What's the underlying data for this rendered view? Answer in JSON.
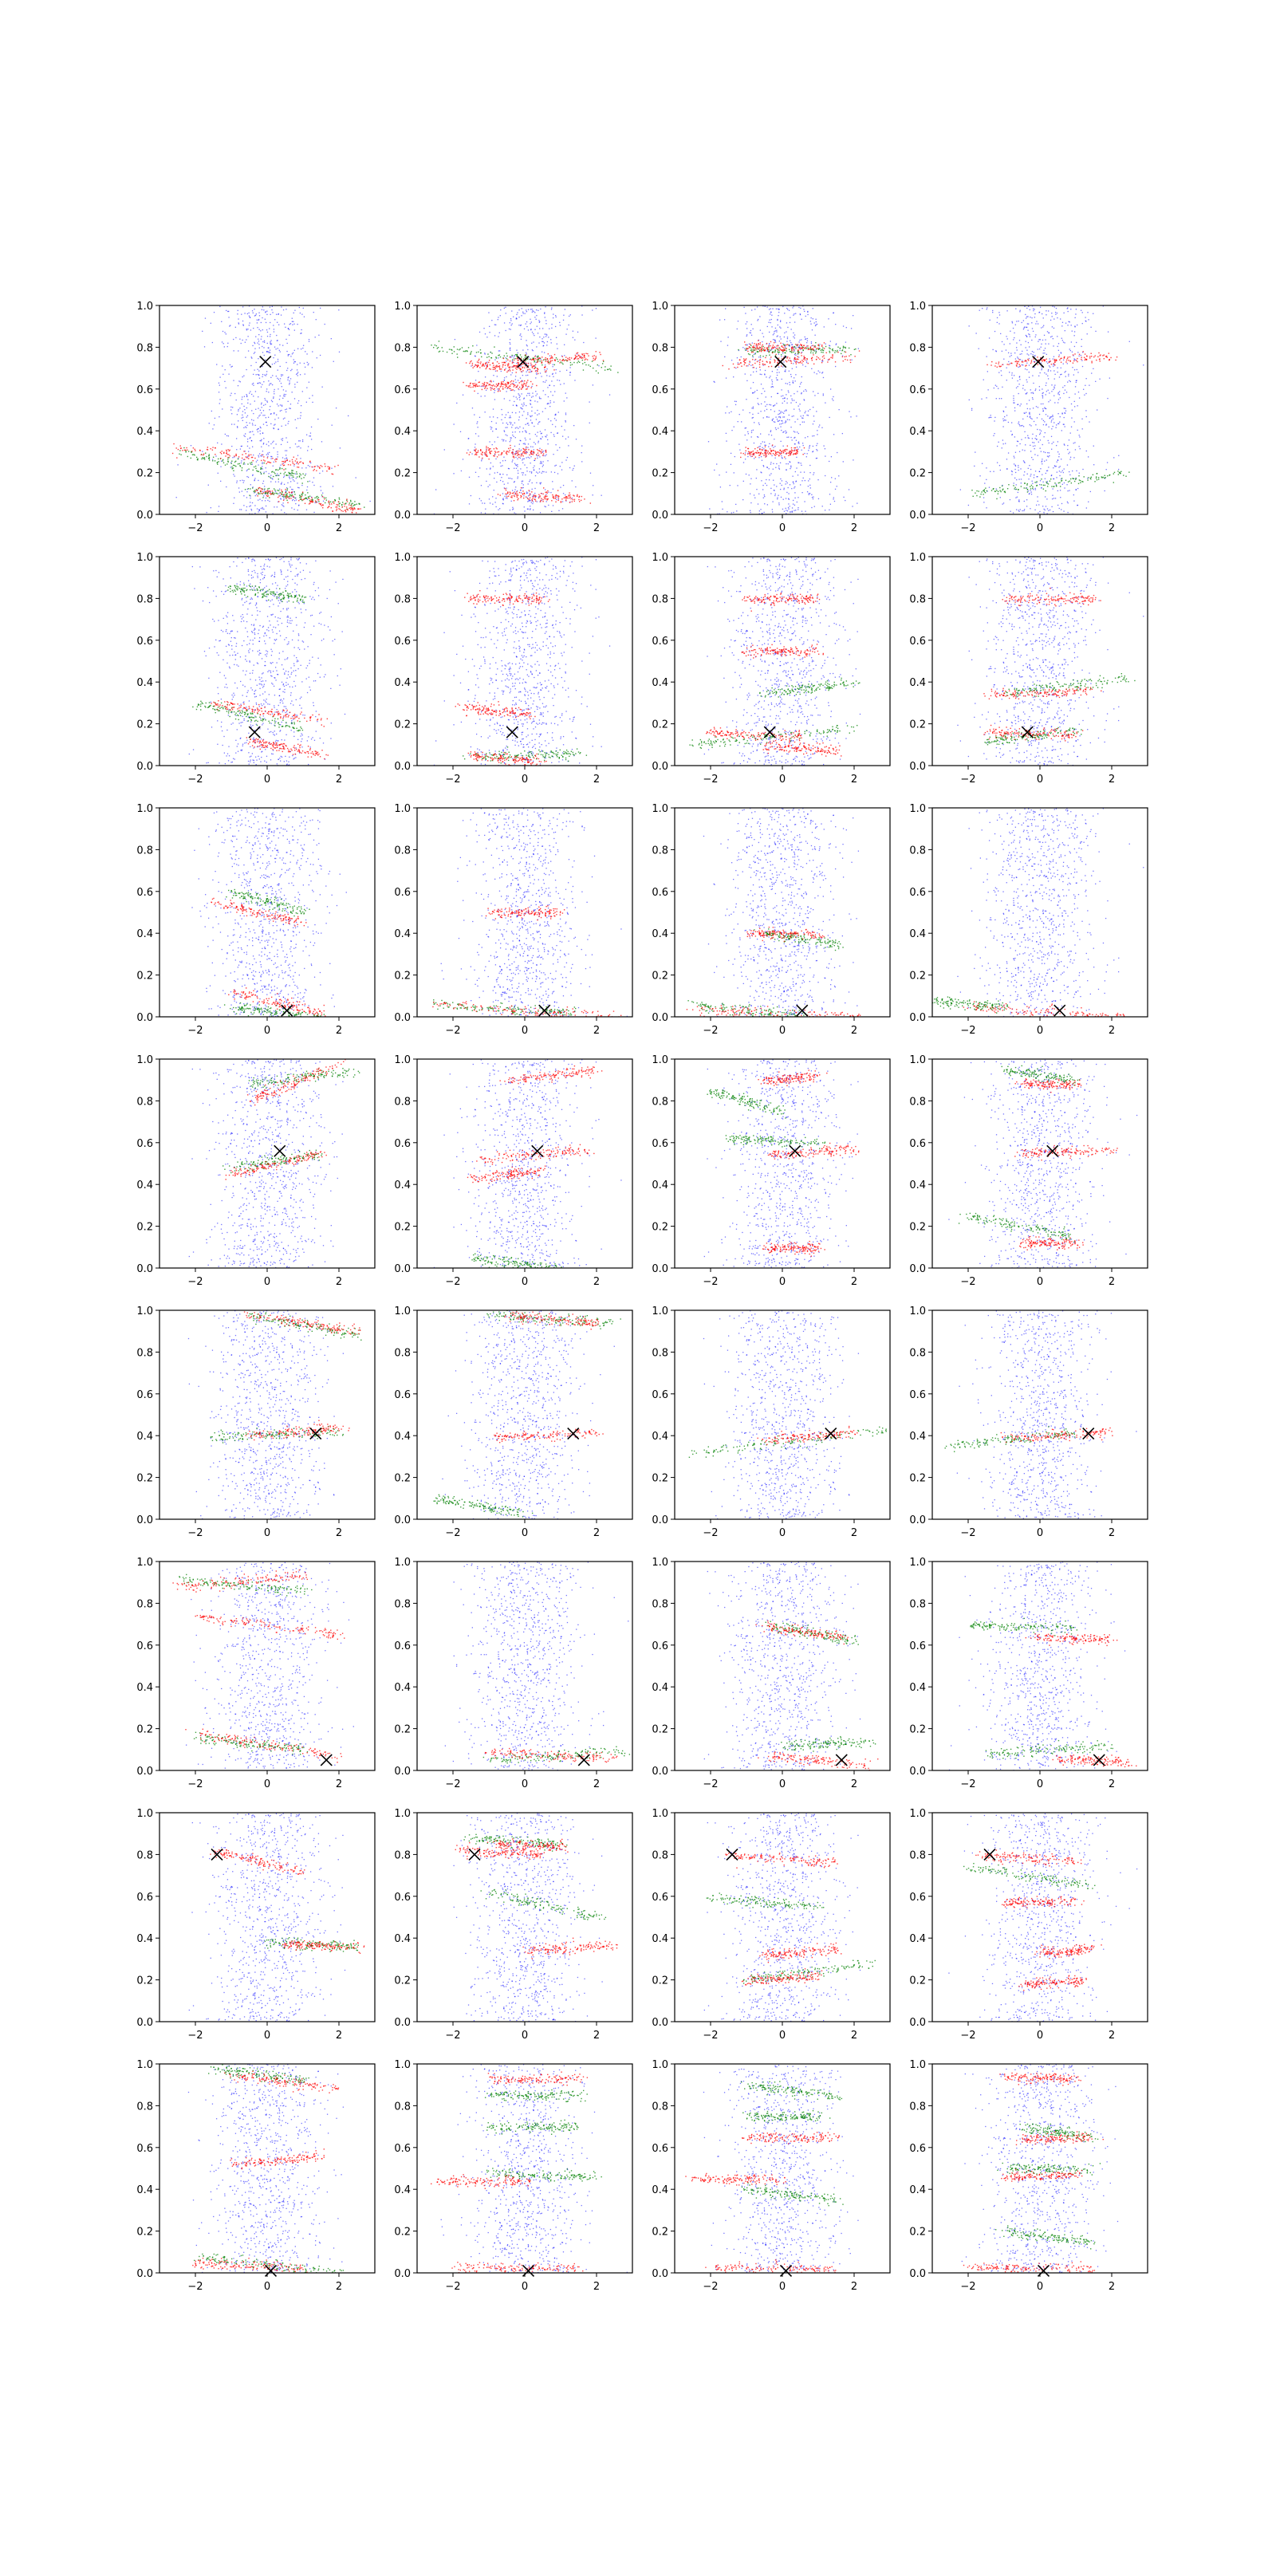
{
  "figure": {
    "rows": 8,
    "cols": 4,
    "colors": {
      "blue": "#0000ff",
      "red": "#ff0000",
      "green": "#008000",
      "marker": "#000000",
      "background": "#ffffff"
    }
  },
  "chart_data": {
    "type": "scatter",
    "xlim": [
      -3.0,
      3.0
    ],
    "ylim": [
      0.0,
      1.0
    ],
    "xticks": [
      -2,
      0,
      2
    ],
    "xtick_labels": [
      "−2",
      "0",
      "2"
    ],
    "yticks": [
      0.0,
      0.2,
      0.4,
      0.6,
      0.8,
      1.0
    ],
    "ytick_labels": [
      "0.0",
      "0.2",
      "0.4",
      "0.6",
      "0.8",
      "1.0"
    ],
    "grid": false,
    "legend": "none",
    "series_colors": {
      "blue": "#0000ff",
      "red": "#ff0000",
      "green": "#008000"
    },
    "marker_symbol": "x",
    "row_markers": [
      [
        -0.05,
        0.73
      ],
      [
        -0.35,
        0.16
      ],
      [
        0.55,
        0.03
      ],
      [
        0.35,
        0.56
      ],
      [
        1.35,
        0.41
      ],
      [
        1.65,
        0.05
      ],
      [
        -1.4,
        0.8
      ],
      [
        0.1,
        0.01
      ]
    ],
    "red_bands": [
      [
        [
          -2.5,
          2.0,
          0.32,
          0.22
        ],
        [
          -0.3,
          2.5,
          0.12,
          0.02
        ]
      ],
      [
        [
          -0.5,
          2.0,
          0.73,
          0.76
        ],
        [
          -1.6,
          0.5,
          0.72,
          0.7
        ],
        [
          -1.5,
          0.2,
          0.62,
          0.62
        ],
        [
          -1.5,
          0.5,
          0.3,
          0.3
        ],
        [
          -0.6,
          1.6,
          0.1,
          0.08
        ]
      ],
      [
        [
          -1.5,
          2.0,
          0.72,
          0.76
        ],
        [
          -1.0,
          1.0,
          0.8,
          0.8
        ],
        [
          -1.0,
          0.5,
          0.3,
          0.3
        ]
      ],
      [
        [
          -1.3,
          2.0,
          0.72,
          0.76
        ]
      ],
      [
        [
          -1.5,
          1.5,
          0.3,
          0.22
        ],
        [
          -0.5,
          1.5,
          0.12,
          0.05
        ]
      ],
      [
        [
          -1.5,
          0.5,
          0.8,
          0.8
        ],
        [
          -1.8,
          0.2,
          0.28,
          0.25
        ],
        [
          -1.5,
          0.5,
          0.05,
          0.02
        ]
      ],
      [
        [
          -1.0,
          1.0,
          0.8,
          0.8
        ],
        [
          -2.0,
          0.5,
          0.16,
          0.14
        ],
        [
          -0.5,
          1.5,
          0.1,
          0.07
        ],
        [
          -1.0,
          1.0,
          0.55,
          0.55
        ]
      ],
      [
        [
          -1.5,
          1.5,
          0.34,
          0.36
        ],
        [
          -1.5,
          1.0,
          0.16,
          0.15
        ],
        [
          -1.0,
          1.5,
          0.8,
          0.8
        ]
      ],
      [
        [
          -1.5,
          1.0,
          0.55,
          0.45
        ],
        [
          -1.0,
          1.5,
          0.12,
          0.02
        ]
      ],
      [
        [
          -2.5,
          2.5,
          0.06,
          0.0
        ],
        [
          -1.0,
          1.0,
          0.5,
          0.5
        ]
      ],
      [
        [
          -2.5,
          2.5,
          0.04,
          0.0
        ],
        [
          -1.0,
          1.0,
          0.4,
          0.4
        ]
      ],
      [
        [
          -2.0,
          2.5,
          0.05,
          0.0
        ]
      ],
      [
        [
          -0.5,
          2.0,
          0.8,
          0.98
        ],
        [
          -1.0,
          1.5,
          0.45,
          0.55
        ]
      ],
      [
        [
          -0.5,
          2.0,
          0.9,
          0.95
        ],
        [
          -1.2,
          1.8,
          0.52,
          0.57
        ],
        [
          -1.5,
          0.5,
          0.43,
          0.47
        ]
      ],
      [
        [
          -0.5,
          2.0,
          0.54,
          0.57
        ],
        [
          -0.5,
          1.0,
          0.9,
          0.92
        ],
        [
          -0.5,
          1.0,
          0.1,
          0.1
        ]
      ],
      [
        [
          -0.5,
          2.0,
          0.55,
          0.57
        ],
        [
          -0.5,
          1.0,
          0.88,
          0.88
        ],
        [
          -0.5,
          1.0,
          0.12,
          0.12
        ]
      ],
      [
        [
          -0.5,
          2.5,
          0.98,
          0.9
        ],
        [
          -0.5,
          2.0,
          0.4,
          0.44
        ]
      ],
      [
        [
          -0.5,
          2.0,
          0.98,
          0.94
        ],
        [
          -0.8,
          2.0,
          0.39,
          0.42
        ]
      ],
      [
        [
          -0.5,
          2.0,
          0.38,
          0.42
        ]
      ],
      [
        [
          -1.0,
          2.0,
          0.39,
          0.42
        ]
      ],
      [
        [
          -2.5,
          1.0,
          0.88,
          0.94
        ],
        [
          -2.0,
          2.0,
          0.74,
          0.65
        ],
        [
          -2.0,
          2.0,
          0.18,
          0.07
        ]
      ],
      [
        [
          -1.0,
          2.5,
          0.09,
          0.06
        ]
      ],
      [
        [
          -0.5,
          1.8,
          0.69,
          0.64
        ],
        [
          -0.5,
          2.5,
          0.07,
          0.03
        ]
      ],
      [
        [
          -0.2,
          2.0,
          0.64,
          0.63
        ],
        [
          0.5,
          2.5,
          0.06,
          0.04
        ]
      ],
      [
        [
          -1.5,
          1.0,
          0.82,
          0.72
        ],
        [
          0.5,
          2.5,
          0.37,
          0.36
        ]
      ],
      [
        [
          -1.8,
          0.5,
          0.82,
          0.8
        ],
        [
          0.0,
          2.5,
          0.34,
          0.37
        ],
        [
          -0.8,
          1.2,
          0.85,
          0.84
        ]
      ],
      [
        [
          -1.5,
          1.5,
          0.8,
          0.76
        ],
        [
          -0.5,
          1.5,
          0.32,
          0.35
        ],
        [
          -1.0,
          1.0,
          0.2,
          0.22
        ]
      ],
      [
        [
          -1.8,
          1.0,
          0.8,
          0.77
        ],
        [
          -1.0,
          1.0,
          0.57,
          0.58
        ],
        [
          0.0,
          1.5,
          0.33,
          0.35
        ],
        [
          -0.5,
          1.2,
          0.18,
          0.2
        ]
      ],
      [
        [
          -1.0,
          2.0,
          0.95,
          0.88
        ],
        [
          -1.0,
          1.5,
          0.52,
          0.56
        ],
        [
          -2.0,
          1.0,
          0.05,
          0.02
        ]
      ],
      [
        [
          -2.5,
          0.0,
          0.44,
          0.44
        ],
        [
          -1.0,
          1.5,
          0.93,
          0.93
        ],
        [
          -2.0,
          1.5,
          0.03,
          0.02
        ]
      ],
      [
        [
          -2.5,
          0.0,
          0.45,
          0.45
        ],
        [
          -1.0,
          1.5,
          0.65,
          0.65
        ],
        [
          -2.0,
          1.5,
          0.03,
          0.02
        ]
      ],
      [
        [
          -1.0,
          1.0,
          0.46,
          0.47
        ],
        [
          -0.5,
          1.5,
          0.64,
          0.65
        ],
        [
          -1.0,
          1.0,
          0.94,
          0.93
        ],
        [
          -2.0,
          1.5,
          0.03,
          0.02
        ]
      ]
    ],
    "green_bands": [
      [
        [
          -2.5,
          1.0,
          0.3,
          0.18
        ],
        [
          -0.5,
          2.5,
          0.12,
          0.05
        ]
      ],
      [
        [
          -2.5,
          2.5,
          0.8,
          0.7
        ]
      ],
      [
        [
          -1.0,
          2.0,
          0.78,
          0.8
        ]
      ],
      [
        [
          -2.0,
          2.5,
          0.1,
          0.2
        ]
      ],
      [
        [
          -1.0,
          1.0,
          0.85,
          0.8
        ],
        [
          -2.0,
          1.0,
          0.3,
          0.18
        ]
      ],
      [
        [
          -1.5,
          1.5,
          0.04,
          0.06
        ]
      ],
      [
        [
          -2.5,
          2.0,
          0.1,
          0.18
        ],
        [
          -0.5,
          2.0,
          0.35,
          0.4
        ]
      ],
      [
        [
          -1.0,
          2.5,
          0.35,
          0.42
        ],
        [
          -1.5,
          1.0,
          0.12,
          0.17
        ]
      ],
      [
        [
          -1.0,
          1.0,
          0.6,
          0.5
        ],
        [
          -1.0,
          1.5,
          0.05,
          0.0
        ]
      ],
      [
        [
          -2.5,
          1.5,
          0.06,
          0.02
        ]
      ],
      [
        [
          -2.5,
          0.5,
          0.06,
          0.01
        ],
        [
          -0.5,
          1.5,
          0.4,
          0.35
        ]
      ],
      [
        [
          -3.0,
          -1.0,
          0.08,
          0.05
        ]
      ],
      [
        [
          -0.5,
          2.5,
          0.88,
          0.95
        ],
        [
          -1.0,
          1.5,
          0.48,
          0.55
        ]
      ],
      [
        [
          -1.5,
          1.0,
          0.05,
          0.0
        ]
      ],
      [
        [
          -2.0,
          0.0,
          0.85,
          0.75
        ],
        [
          -1.5,
          1.0,
          0.62,
          0.6
        ]
      ],
      [
        [
          -1.0,
          1.0,
          0.95,
          0.9
        ],
        [
          -2.0,
          1.0,
          0.25,
          0.15
        ]
      ],
      [
        [
          -0.5,
          2.5,
          0.98,
          0.88
        ],
        [
          -1.5,
          2.0,
          0.4,
          0.42
        ]
      ],
      [
        [
          -2.5,
          0.0,
          0.1,
          0.03
        ],
        [
          -1.0,
          2.5,
          0.98,
          0.94
        ]
      ],
      [
        [
          -2.5,
          3.0,
          0.32,
          0.43
        ]
      ],
      [
        [
          -2.5,
          1.0,
          0.35,
          0.42
        ]
      ],
      [
        [
          -2.5,
          1.0,
          0.92,
          0.86
        ],
        [
          -2.0,
          1.0,
          0.16,
          0.1
        ]
      ],
      [
        [
          -1.0,
          3.0,
          0.05,
          0.1
        ]
      ],
      [
        [
          -0.5,
          2.0,
          0.7,
          0.62
        ],
        [
          0.0,
          2.5,
          0.12,
          0.14
        ]
      ],
      [
        [
          -2.0,
          1.0,
          0.7,
          0.68
        ],
        [
          -1.5,
          2.0,
          0.08,
          0.12
        ]
      ],
      [
        [
          0.0,
          2.5,
          0.38,
          0.36
        ]
      ],
      [
        [
          -1.0,
          2.0,
          0.62,
          0.5
        ],
        [
          -1.5,
          1.0,
          0.88,
          0.85
        ]
      ],
      [
        [
          -1.0,
          2.5,
          0.2,
          0.28
        ],
        [
          -2.0,
          1.0,
          0.6,
          0.55
        ]
      ],
      [
        [
          -2.0,
          1.5,
          0.74,
          0.65
        ]
      ],
      [
        [
          -2.0,
          2.0,
          0.08,
          0.0
        ],
        [
          -1.5,
          1.0,
          0.98,
          0.92
        ]
      ],
      [
        [
          -1.0,
          2.0,
          0.48,
          0.46
        ],
        [
          -1.0,
          1.5,
          0.85,
          0.85
        ],
        [
          -1.0,
          1.5,
          0.7,
          0.7
        ]
      ],
      [
        [
          -1.0,
          1.5,
          0.9,
          0.85
        ],
        [
          -1.0,
          1.5,
          0.4,
          0.35
        ],
        [
          -1.0,
          1.0,
          0.75,
          0.75
        ]
      ],
      [
        [
          -0.5,
          1.5,
          0.7,
          0.65
        ],
        [
          -1.0,
          1.5,
          0.2,
          0.15
        ],
        [
          -1.0,
          1.5,
          0.5,
          0.5
        ]
      ]
    ]
  }
}
